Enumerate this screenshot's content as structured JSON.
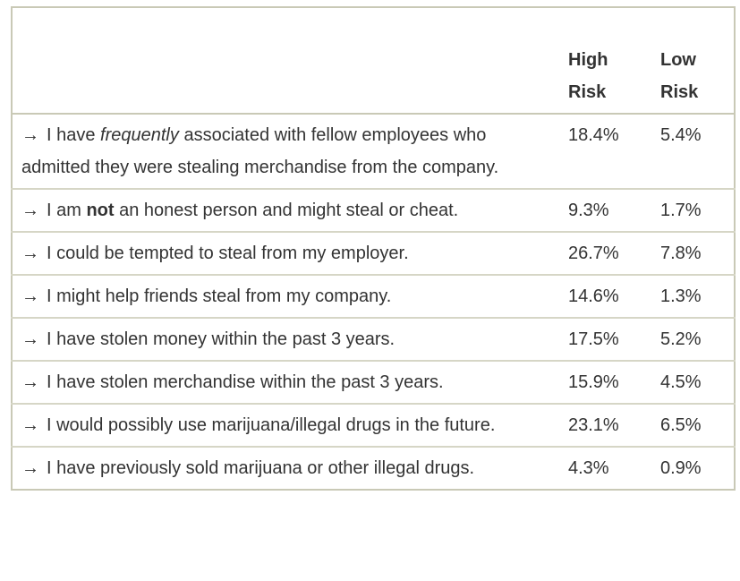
{
  "columns": {
    "statement": "",
    "high_risk": "High Risk",
    "low_risk": "Low Risk"
  },
  "arrow": "→",
  "rows": [
    {
      "pre": "I have ",
      "em": "frequently",
      "post": " associated with fellow employees who admitted they were stealing merchandise from the company.",
      "high": "18.4%",
      "low": "5.4%"
    },
    {
      "pre": "I am ",
      "strong": "not",
      "post": " an honest person and might steal or cheat.",
      "high": "9.3%",
      "low": "1.7%"
    },
    {
      "pre": "I could be tempted to steal from my employer.",
      "high": "26.7%",
      "low": "7.8%"
    },
    {
      "pre": "I might help friends steal from my company.",
      "high": "14.6%",
      "low": "1.3%"
    },
    {
      "pre": "I have stolen money within the past 3 years.",
      "high": "17.5%",
      "low": "5.2%"
    },
    {
      "pre": "I have stolen merchandise within the past 3 years.",
      "high": "15.9%",
      "low": "4.5%"
    },
    {
      "pre": "I would possibly use marijuana/illegal drugs in the future.",
      "high": "23.1%",
      "low": "6.5%"
    },
    {
      "pre": "I have previously sold marijuana or other illegal drugs.",
      "high": "4.3%",
      "low": "0.9%"
    }
  ]
}
